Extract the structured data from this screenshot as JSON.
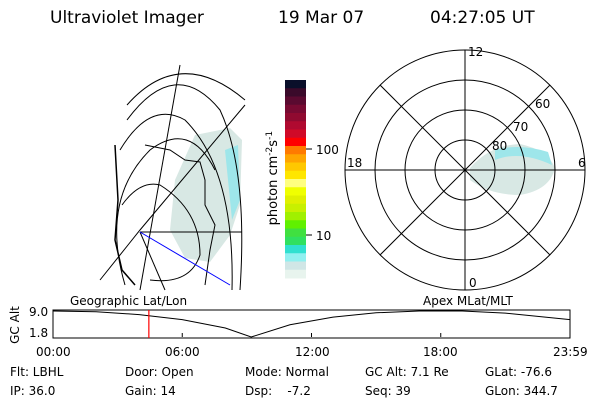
{
  "header": {
    "instrument": "Ultraviolet Imager",
    "date": "19 Mar 07",
    "time": "04:27:05 UT"
  },
  "colorbar": {
    "label": "photon cm",
    "label_sup1": "-2",
    "label_mid": "s",
    "label_sup2": "-1",
    "ticks": [
      "100",
      "10"
    ],
    "colors": [
      "#0a0f2a",
      "#3a0a2a",
      "#5a0a30",
      "#780a32",
      "#900a30",
      "#b00a30",
      "#d00a28",
      "#ff0000",
      "#ff7a00",
      "#ffa500",
      "#ffc800",
      "#ffe600",
      "#ffff80",
      "#f0ff00",
      "#e0f000",
      "#c8f000",
      "#a0f000",
      "#60f000",
      "#40e040",
      "#30e060",
      "#30e0d0",
      "#90f0f0",
      "#d0e6e6",
      "#e8f4ee"
    ]
  },
  "polar": {
    "mlt_labels": [
      "12",
      "18",
      "6",
      "0"
    ],
    "lat_labels": [
      "80",
      "70",
      "60"
    ]
  },
  "altitude_plot": {
    "left_label": "Geographic Lat/Lon",
    "right_label": "Apex MLat/MLT",
    "ylabel": "GC Alt",
    "yticks": [
      "9.0",
      "1.8"
    ],
    "xticks": [
      "00:00",
      "06:00",
      "12:00",
      "18:00",
      "23:59"
    ],
    "marker_time": "04:27",
    "marker_color": "#ff0000"
  },
  "chart_data": {
    "type": "line",
    "ylabel": "GC Alt",
    "xlabel": "",
    "ylim": [
      1.8,
      9.0
    ],
    "x": [
      0,
      2,
      4,
      6,
      8,
      9.2,
      11,
      13,
      15,
      17,
      19,
      21,
      24
    ],
    "y": [
      9.0,
      8.8,
      8.0,
      6.6,
      4.3,
      1.8,
      5.2,
      7.3,
      8.5,
      9.0,
      9.0,
      8.4,
      6.6
    ],
    "xticks": [
      "00:00",
      "06:00",
      "12:00",
      "18:00",
      "23:59"
    ],
    "yticks": [
      "9.0",
      "1.8"
    ]
  },
  "info": [
    [
      "Flt: LBHL",
      "IP: 36.0"
    ],
    [
      "Door: Open",
      "Gain: 14"
    ],
    [
      "Mode: Normal",
      "Dsp:    -7.2"
    ],
    [
      "GC Alt: 7.1 Re",
      "Seq: 39"
    ],
    [
      "GLat: -76.6",
      "GLon: 344.7"
    ]
  ]
}
